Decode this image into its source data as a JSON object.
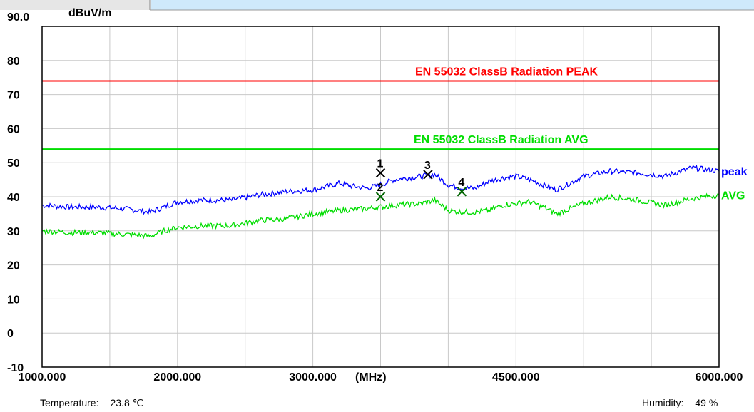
{
  "header": {
    "left_tab_color": "#e6e6e6",
    "right_bar_color": "#cfe9fb"
  },
  "chart_data": {
    "type": "line",
    "yunit": "dBuV/m",
    "xunit": "(MHz)",
    "ylim": [
      -10,
      90
    ],
    "xlim": [
      1000,
      6000
    ],
    "y_ticks": [
      "90.0",
      "80",
      "70",
      "60",
      "50",
      "40",
      "30",
      "20",
      "10",
      "0",
      "-10"
    ],
    "x_tick_labels": [
      {
        "value": 1000,
        "label": "1000.000"
      },
      {
        "value": 2000,
        "label": "2000.000"
      },
      {
        "value": 3000,
        "label": "3000.000"
      },
      {
        "value": 4500,
        "label": "4500.000"
      },
      {
        "value": 6000,
        "label": "6000.000"
      }
    ],
    "grid": true,
    "limits": [
      {
        "name": "EN 55032 ClassB Radiation PEAK",
        "value": 74,
        "color": "#ff0000"
      },
      {
        "name": "EN 55032 ClassB Radiation AVG",
        "value": 54,
        "color": "#00dd00"
      }
    ],
    "series": [
      {
        "name": "peak",
        "color": "#0000ff",
        "x": [
          1000,
          1200,
          1400,
          1600,
          1800,
          1900,
          2000,
          2200,
          2400,
          2600,
          2800,
          3000,
          3200,
          3300,
          3400,
          3500,
          3600,
          3700,
          3800,
          3900,
          4000,
          4100,
          4200,
          4300,
          4400,
          4500,
          4600,
          4700,
          4800,
          4900,
          5000,
          5200,
          5400,
          5600,
          5800,
          6000
        ],
        "y": [
          37.5,
          37.0,
          37.0,
          36.5,
          35.5,
          37.0,
          38.5,
          39.0,
          39.0,
          40.5,
          41.5,
          42.0,
          44.0,
          43.0,
          42.5,
          43.5,
          45.0,
          45.5,
          46.0,
          46.5,
          43.5,
          42.5,
          42.5,
          44.5,
          45.5,
          46.0,
          45.0,
          43.5,
          42.0,
          44.0,
          46.0,
          47.5,
          47.0,
          46.0,
          48.5,
          47.5
        ]
      },
      {
        "name": "AVG",
        "color": "#00dd00",
        "x": [
          1000,
          1200,
          1400,
          1600,
          1800,
          1900,
          2000,
          2200,
          2400,
          2600,
          2800,
          3000,
          3200,
          3400,
          3600,
          3800,
          3900,
          4000,
          4100,
          4200,
          4300,
          4400,
          4500,
          4600,
          4700,
          4800,
          4900,
          5000,
          5200,
          5400,
          5600,
          5800,
          6000
        ],
        "y": [
          30.0,
          29.5,
          29.5,
          29.0,
          28.5,
          30.0,
          31.0,
          31.5,
          31.5,
          33.0,
          33.5,
          35.0,
          36.0,
          36.5,
          37.5,
          38.0,
          39.0,
          36.0,
          35.5,
          35.5,
          36.0,
          37.5,
          38.0,
          38.5,
          37.0,
          35.0,
          36.5,
          38.0,
          40.0,
          39.0,
          37.5,
          39.5,
          40.5
        ]
      }
    ],
    "markers": [
      {
        "label": "1",
        "x": 3500,
        "y": 47.0,
        "color": "#000000"
      },
      {
        "label": "2",
        "x": 3500,
        "y": 40.0,
        "color": "#006400"
      },
      {
        "label": "3",
        "x": 3850,
        "y": 46.5,
        "color": "#000000"
      },
      {
        "label": "4",
        "x": 4100,
        "y": 41.5,
        "color": "#006400"
      }
    ]
  },
  "footer": {
    "temperature_label": "Temperature:",
    "temperature_value": "23.8 ℃",
    "humidity_label": "Humidity:",
    "humidity_value": "49 %"
  }
}
